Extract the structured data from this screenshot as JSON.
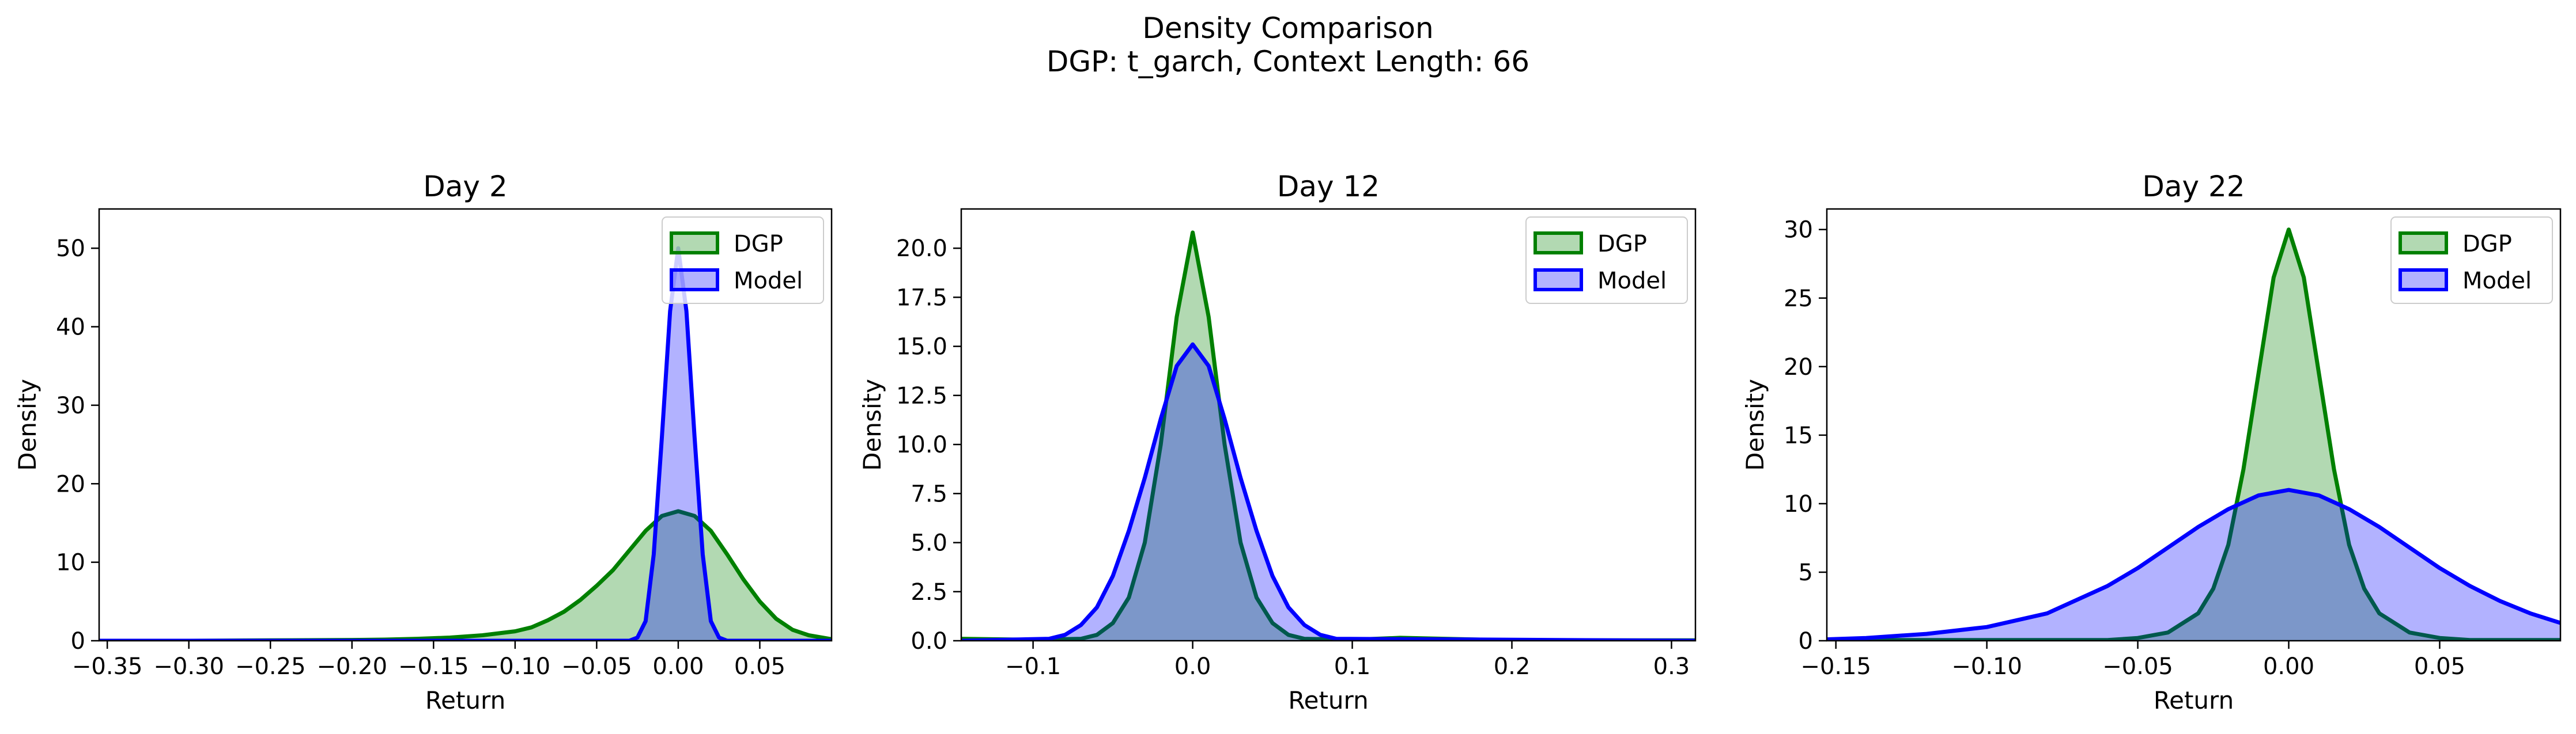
{
  "figure": {
    "title_line1": "Density Comparison",
    "title_line2": "DGP: t_garch, Context Length: 66"
  },
  "colors": {
    "dgp_line": "#008000",
    "dgp_fill": "#008000",
    "model_line": "#0000ff",
    "model_fill": "#0000ff"
  },
  "chart_data": [
    {
      "type": "area",
      "title": "Day 2",
      "xlabel": "Return",
      "ylabel": "Density",
      "xlim": [
        -0.355,
        0.094
      ],
      "ylim": [
        0,
        55
      ],
      "xticks": [
        -0.35,
        -0.3,
        -0.25,
        -0.2,
        -0.15,
        -0.1,
        -0.05,
        0.0,
        0.05
      ],
      "xtick_labels": [
        "−0.35",
        "−0.30",
        "−0.25",
        "−0.20",
        "−0.15",
        "−0.10",
        "−0.05",
        "0.00",
        "0.05"
      ],
      "yticks": [
        0,
        10,
        20,
        30,
        40,
        50
      ],
      "ytick_labels": [
        "0",
        "10",
        "20",
        "30",
        "40",
        "50"
      ],
      "legend": "top-right",
      "grid": false,
      "series": [
        {
          "name": "DGP",
          "x": [
            -0.355,
            -0.3,
            -0.25,
            -0.2,
            -0.18,
            -0.16,
            -0.14,
            -0.12,
            -0.1,
            -0.09,
            -0.08,
            -0.07,
            -0.06,
            -0.05,
            -0.04,
            -0.03,
            -0.02,
            -0.01,
            0.0,
            0.01,
            0.02,
            0.03,
            0.04,
            0.05,
            0.06,
            0.07,
            0.08,
            0.094
          ],
          "y": [
            0,
            0,
            0.05,
            0.1,
            0.15,
            0.25,
            0.4,
            0.7,
            1.2,
            1.7,
            2.6,
            3.7,
            5.2,
            7.0,
            9.0,
            11.5,
            14.0,
            15.9,
            16.5,
            15.9,
            14.0,
            11.0,
            7.8,
            5.0,
            2.8,
            1.4,
            0.7,
            0.2
          ]
        },
        {
          "name": "Model",
          "x": [
            -0.355,
            -0.03,
            -0.025,
            -0.02,
            -0.015,
            -0.01,
            -0.005,
            0.0,
            0.005,
            0.01,
            0.015,
            0.02,
            0.025,
            0.03,
            0.094
          ],
          "y": [
            0,
            0,
            0.4,
            2.5,
            11,
            26,
            42,
            50,
            42,
            26,
            11,
            2.5,
            0.4,
            0,
            0
          ]
        }
      ]
    },
    {
      "type": "area",
      "title": "Day 12",
      "xlabel": "Return",
      "ylabel": "Density",
      "xlim": [
        -0.145,
        0.315
      ],
      "ylim": [
        0,
        22
      ],
      "xticks": [
        -0.1,
        0.0,
        0.1,
        0.2,
        0.3
      ],
      "xtick_labels": [
        "−0.1",
        "0.0",
        "0.1",
        "0.2",
        "0.3"
      ],
      "yticks": [
        0,
        2.5,
        5,
        7.5,
        10,
        12.5,
        15,
        17.5,
        20
      ],
      "ytick_labels": [
        "0.0",
        "2.5",
        "5.0",
        "7.5",
        "10.0",
        "12.5",
        "15.0",
        "17.5",
        "20.0"
      ],
      "legend": "top-right",
      "grid": false,
      "series": [
        {
          "name": "DGP",
          "x": [
            -0.145,
            -0.1,
            -0.07,
            -0.06,
            -0.05,
            -0.04,
            -0.03,
            -0.02,
            -0.01,
            0.0,
            0.01,
            0.02,
            0.03,
            0.04,
            0.05,
            0.06,
            0.07,
            0.1,
            0.13,
            0.2,
            0.315
          ],
          "y": [
            0.1,
            0.05,
            0.1,
            0.3,
            0.9,
            2.2,
            5.0,
            10.0,
            16.5,
            20.8,
            16.5,
            10.0,
            5.0,
            2.2,
            0.9,
            0.3,
            0.1,
            0.05,
            0.15,
            0.02,
            0.02
          ]
        },
        {
          "name": "Model",
          "x": [
            -0.145,
            -0.09,
            -0.08,
            -0.07,
            -0.06,
            -0.05,
            -0.04,
            -0.03,
            -0.02,
            -0.01,
            0.0,
            0.01,
            0.02,
            0.03,
            0.04,
            0.05,
            0.06,
            0.07,
            0.08,
            0.09,
            0.315
          ],
          "y": [
            0,
            0.1,
            0.3,
            0.8,
            1.7,
            3.3,
            5.6,
            8.3,
            11.3,
            14.0,
            15.1,
            14.0,
            11.3,
            8.3,
            5.6,
            3.3,
            1.7,
            0.8,
            0.3,
            0.1,
            0
          ]
        }
      ]
    },
    {
      "type": "area",
      "title": "Day 22",
      "xlabel": "Return",
      "ylabel": "Density",
      "xlim": [
        -0.153,
        0.09
      ],
      "ylim": [
        0,
        31.5
      ],
      "xticks": [
        -0.15,
        -0.1,
        -0.05,
        0.0,
        0.05
      ],
      "xtick_labels": [
        "−0.15",
        "−0.10",
        "−0.05",
        "0.00",
        "0.05"
      ],
      "yticks": [
        0,
        5,
        10,
        15,
        20,
        25,
        30
      ],
      "ytick_labels": [
        "0",
        "5",
        "10",
        "15",
        "20",
        "25",
        "30"
      ],
      "legend": "top-right",
      "grid": false,
      "series": [
        {
          "name": "DGP",
          "x": [
            -0.153,
            -0.06,
            -0.05,
            -0.04,
            -0.03,
            -0.025,
            -0.02,
            -0.015,
            -0.01,
            -0.005,
            0.0,
            0.005,
            0.01,
            0.015,
            0.02,
            0.025,
            0.03,
            0.04,
            0.05,
            0.06,
            0.09
          ],
          "y": [
            0.05,
            0.05,
            0.2,
            0.6,
            2.0,
            3.8,
            7.0,
            12.5,
            19.5,
            26.5,
            30.0,
            26.5,
            19.5,
            12.5,
            7.0,
            3.8,
            2.0,
            0.6,
            0.2,
            0.05,
            0.05
          ]
        },
        {
          "name": "Model",
          "x": [
            -0.153,
            -0.14,
            -0.12,
            -0.1,
            -0.08,
            -0.06,
            -0.05,
            -0.04,
            -0.03,
            -0.02,
            -0.01,
            0.0,
            0.01,
            0.02,
            0.03,
            0.04,
            0.05,
            0.06,
            0.07,
            0.08,
            0.09
          ],
          "y": [
            0.1,
            0.2,
            0.5,
            1.0,
            2.0,
            4.0,
            5.3,
            6.8,
            8.3,
            9.6,
            10.6,
            11.0,
            10.6,
            9.6,
            8.3,
            6.8,
            5.3,
            4.0,
            2.9,
            2.0,
            1.3
          ]
        }
      ]
    }
  ]
}
